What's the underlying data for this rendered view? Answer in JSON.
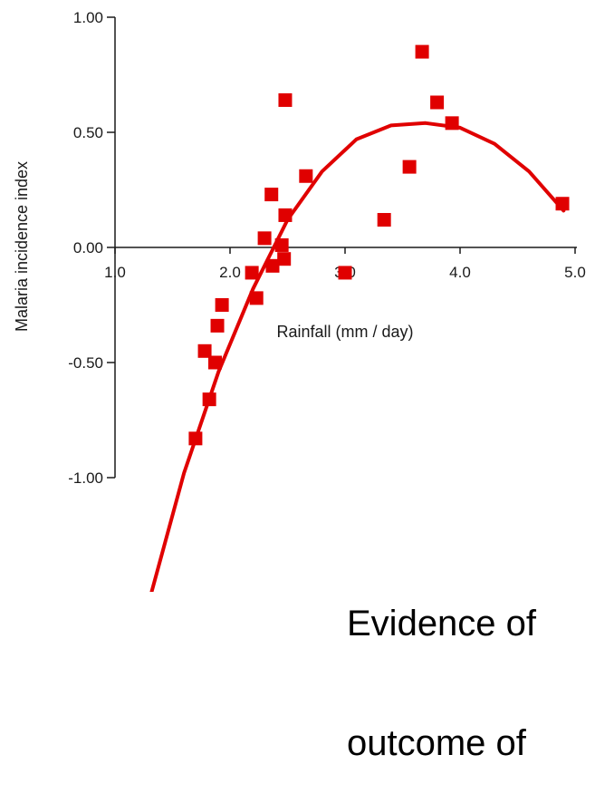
{
  "caption": {
    "line1": "Evidence of",
    "line2": "outcome of"
  },
  "chart_data": {
    "type": "scatter",
    "xlabel": "Rainfall (mm / day)",
    "ylabel": "Malaria incidence index",
    "xlim": [
      1.0,
      5.0
    ],
    "ylim": [
      -1.0,
      1.0
    ],
    "x_ticks": [
      {
        "value": 1.0,
        "label": "1.0"
      },
      {
        "value": 2.0,
        "label": "2.0"
      },
      {
        "value": 3.0,
        "label": "3.0"
      },
      {
        "value": 4.0,
        "label": "4.0"
      },
      {
        "value": 5.0,
        "label": "5.0"
      }
    ],
    "y_ticks": [
      {
        "value": 1.0,
        "label": "1.00"
      },
      {
        "value": 0.5,
        "label": "0.50"
      },
      {
        "value": 0.0,
        "label": "0.00"
      },
      {
        "value": -0.5,
        "label": "-0.50"
      },
      {
        "value": -1.0,
        "label": "-1.00"
      }
    ],
    "marker_color": "#e00000",
    "fit_color": "#e00000",
    "points": [
      {
        "x": 1.7,
        "y": -0.83
      },
      {
        "x": 1.78,
        "y": -0.45
      },
      {
        "x": 1.82,
        "y": -0.66
      },
      {
        "x": 1.87,
        "y": -0.5
      },
      {
        "x": 1.89,
        "y": -0.34
      },
      {
        "x": 1.93,
        "y": -0.25
      },
      {
        "x": 2.19,
        "y": -0.11
      },
      {
        "x": 2.23,
        "y": -0.22
      },
      {
        "x": 2.3,
        "y": 0.04
      },
      {
        "x": 2.36,
        "y": 0.23
      },
      {
        "x": 2.37,
        "y": -0.08
      },
      {
        "x": 2.45,
        "y": 0.01
      },
      {
        "x": 2.47,
        "y": -0.05
      },
      {
        "x": 2.48,
        "y": 0.14
      },
      {
        "x": 2.48,
        "y": 0.64
      },
      {
        "x": 2.66,
        "y": 0.31
      },
      {
        "x": 3.0,
        "y": -0.11
      },
      {
        "x": 3.34,
        "y": 0.12
      },
      {
        "x": 3.56,
        "y": 0.35
      },
      {
        "x": 3.67,
        "y": 0.85
      },
      {
        "x": 3.8,
        "y": 0.63
      },
      {
        "x": 3.93,
        "y": 0.54
      },
      {
        "x": 4.89,
        "y": 0.19
      }
    ],
    "fit_curve": [
      {
        "x": 1.3,
        "y": -1.53
      },
      {
        "x": 1.6,
        "y": -0.98
      },
      {
        "x": 1.9,
        "y": -0.54
      },
      {
        "x": 2.2,
        "y": -0.18
      },
      {
        "x": 2.5,
        "y": 0.12
      },
      {
        "x": 2.8,
        "y": 0.33
      },
      {
        "x": 3.1,
        "y": 0.47
      },
      {
        "x": 3.4,
        "y": 0.53
      },
      {
        "x": 3.7,
        "y": 0.54
      },
      {
        "x": 4.0,
        "y": 0.52
      },
      {
        "x": 4.3,
        "y": 0.45
      },
      {
        "x": 4.6,
        "y": 0.33
      },
      {
        "x": 4.9,
        "y": 0.16
      }
    ]
  }
}
